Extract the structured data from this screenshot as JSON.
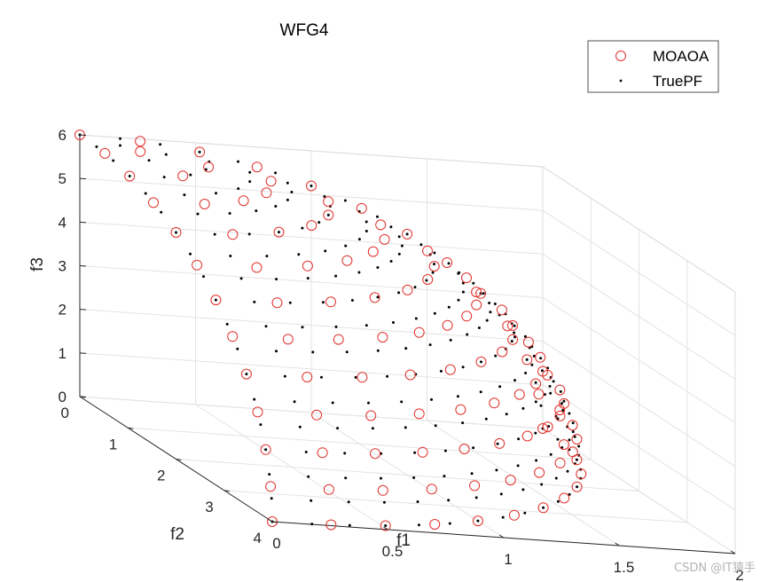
{
  "chart_data": {
    "type": "scatter",
    "title": "WFG4",
    "xlabel": "f1",
    "ylabel": "f2",
    "zlabel": "f3",
    "xlim": [
      0,
      2
    ],
    "ylim": [
      0,
      4
    ],
    "zlim": [
      0,
      6
    ],
    "xticks": [
      "0",
      "0.5",
      "1",
      "1.5",
      "2"
    ],
    "yticks": [
      "0",
      "1",
      "2",
      "3",
      "4"
    ],
    "zticks": [
      "0",
      "1",
      "2",
      "3",
      "4",
      "5",
      "6"
    ],
    "grid": true,
    "legend_position": "top-right",
    "series": [
      {
        "name": "MOAOA",
        "marker": "open-circle",
        "color": "#e0302a",
        "surface": "f1^2/4 + f2^2/16 + f3^2/36 = 1 (first octant)",
        "grid_steps": 12
      },
      {
        "name": "TruePF",
        "marker": "dot",
        "color": "#000000",
        "surface": "f1^2/4 + f2^2/16 + f3^2/36 = 1 (first octant)",
        "grid_steps": 18
      }
    ]
  },
  "watermark": "CSDN @IT猿手"
}
